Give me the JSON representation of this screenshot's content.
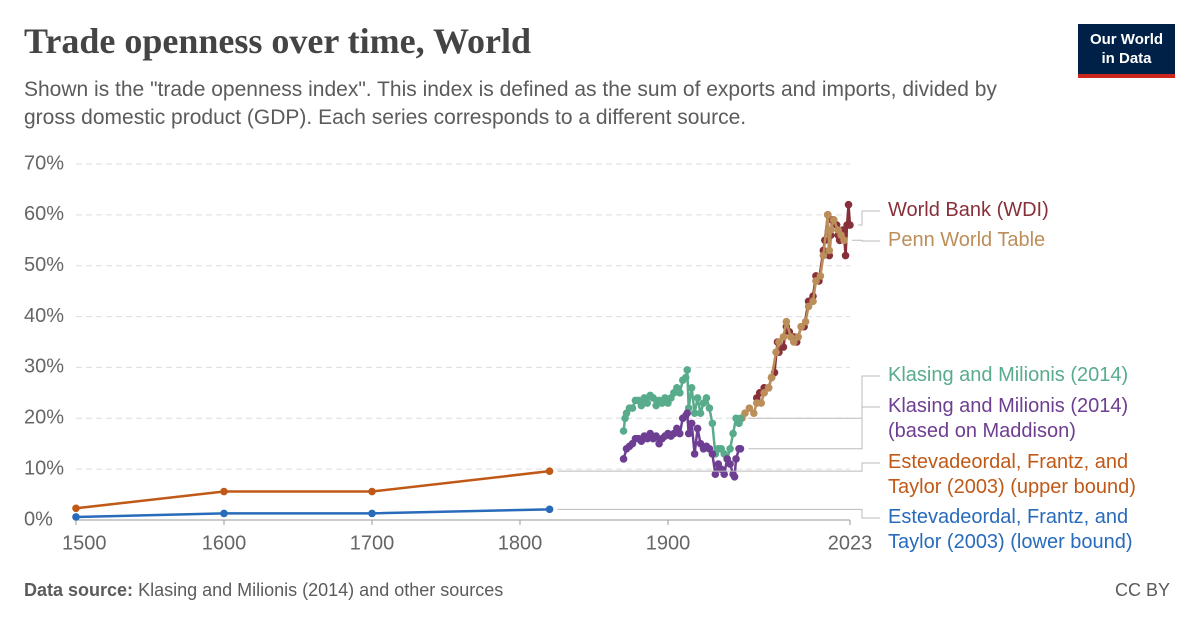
{
  "chart_data": {
    "type": "line",
    "title": "Trade openness over time, World",
    "subtitle": "Shown is the \"trade openness index\". This index is defined as the sum of exports and imports, divided by gross domestic product (GDP). Each series corresponds to a different source.",
    "logo": "Our World in Data",
    "source_label": "Data source:",
    "source": "Klasing and Milionis (2014) and other sources",
    "license": "CC BY",
    "xlim": [
      1500,
      2023
    ],
    "xticks": [
      1500,
      1600,
      1700,
      1800,
      1900,
      2023
    ],
    "ylim": [
      0,
      70
    ],
    "yticks": [
      {
        "value": 0,
        "label": "0%"
      },
      {
        "value": 10,
        "label": "10%"
      },
      {
        "value": 20,
        "label": "20%"
      },
      {
        "value": 30,
        "label": "30%"
      },
      {
        "value": 40,
        "label": "40%"
      },
      {
        "value": 50,
        "label": "50%"
      },
      {
        "value": 60,
        "label": "60%"
      },
      {
        "value": 70,
        "label": "70%"
      }
    ],
    "grid": true,
    "series": [
      {
        "name": "World Bank (WDI)",
        "color": "#883039",
        "x": [
          1960,
          1962,
          1965,
          1968,
          1970,
          1972,
          1974,
          1975,
          1978,
          1980,
          1982,
          1985,
          1987,
          1990,
          1992,
          1995,
          1998,
          2000,
          2002,
          2005,
          2006,
          2008,
          2009,
          2010,
          2011,
          2012,
          2014,
          2015,
          2016,
          2018,
          2019,
          2020,
          2021,
          2022,
          2023
        ],
        "values": [
          24,
          25,
          26,
          26,
          28,
          29,
          35,
          33,
          34,
          38,
          37,
          36,
          35,
          38,
          38,
          43,
          44,
          48,
          47,
          53,
          55,
          60,
          52,
          56,
          59,
          59,
          58,
          56,
          55,
          57,
          56,
          52,
          58,
          62,
          58
        ]
      },
      {
        "name": "Penn World Table",
        "color": "#bc8e5a",
        "x": [
          1950,
          1952,
          1955,
          1958,
          1960,
          1963,
          1965,
          1968,
          1970,
          1973,
          1975,
          1978,
          1980,
          1983,
          1985,
          1988,
          1990,
          1993,
          1995,
          1998,
          2000,
          2003,
          2005,
          2008,
          2009,
          2010,
          2012,
          2015,
          2017,
          2019
        ],
        "values": [
          20,
          21,
          22,
          21,
          23,
          23,
          25,
          26,
          28,
          33,
          35,
          36,
          39,
          36,
          35,
          36,
          38,
          39,
          42,
          43,
          47,
          48,
          52,
          60,
          53,
          57,
          59,
          57,
          56,
          55
        ]
      },
      {
        "name": "Klasing and Milionis (2014)",
        "color": "#58ac8c",
        "x": [
          1870,
          1871,
          1872,
          1874,
          1876,
          1878,
          1880,
          1882,
          1884,
          1886,
          1888,
          1890,
          1892,
          1894,
          1896,
          1898,
          1900,
          1902,
          1904,
          1906,
          1908,
          1910,
          1912,
          1913,
          1914,
          1916,
          1918,
          1920,
          1922,
          1924,
          1926,
          1928,
          1930,
          1932,
          1934,
          1936,
          1938,
          1940,
          1942,
          1944,
          1946,
          1948,
          1949
        ],
        "values": [
          17.5,
          20,
          21,
          22,
          22,
          23.5,
          23.5,
          22.5,
          24,
          23,
          24.5,
          24,
          22.5,
          23.5,
          23,
          24,
          23,
          24,
          25,
          26,
          25,
          27.5,
          28,
          29.5,
          22,
          26,
          21,
          24,
          21,
          23,
          24,
          22,
          19,
          13,
          14,
          14,
          13,
          12,
          14,
          17,
          20,
          19,
          20
        ]
      },
      {
        "name": "Klasing and Milionis (2014) (based on Maddison)",
        "color": "#6d3e91",
        "x": [
          1870,
          1872,
          1874,
          1876,
          1878,
          1880,
          1882,
          1884,
          1886,
          1888,
          1890,
          1892,
          1894,
          1896,
          1898,
          1900,
          1902,
          1904,
          1906,
          1908,
          1910,
          1912,
          1913,
          1914,
          1916,
          1918,
          1920,
          1922,
          1924,
          1926,
          1928,
          1930,
          1932,
          1934,
          1936,
          1938,
          1940,
          1942,
          1944,
          1945,
          1946,
          1948,
          1949
        ],
        "values": [
          12,
          14,
          14.5,
          15,
          16,
          16,
          15.5,
          16.5,
          16,
          17,
          16,
          16.5,
          15,
          16,
          16.5,
          17,
          16.5,
          17,
          18,
          17,
          20,
          20.5,
          21,
          17,
          19,
          13,
          18,
          15,
          14,
          14.5,
          14,
          13,
          9,
          11,
          10,
          9,
          12,
          11,
          9,
          8.5,
          12,
          14,
          14
        ]
      },
      {
        "name": "Estevadeordal, Frantz, and Taylor (2003) (upper bound)",
        "color": "#c05917",
        "x": [
          1500,
          1600,
          1700,
          1820
        ],
        "values": [
          2.3,
          5.6,
          5.6,
          9.6
        ]
      },
      {
        "name": "Estevadeordal, Frantz, and Taylor (2003) (lower bound)",
        "color": "#286bbb",
        "x": [
          1500,
          1600,
          1700,
          1820
        ],
        "values": [
          0.6,
          1.3,
          1.3,
          2.1
        ]
      }
    ]
  }
}
